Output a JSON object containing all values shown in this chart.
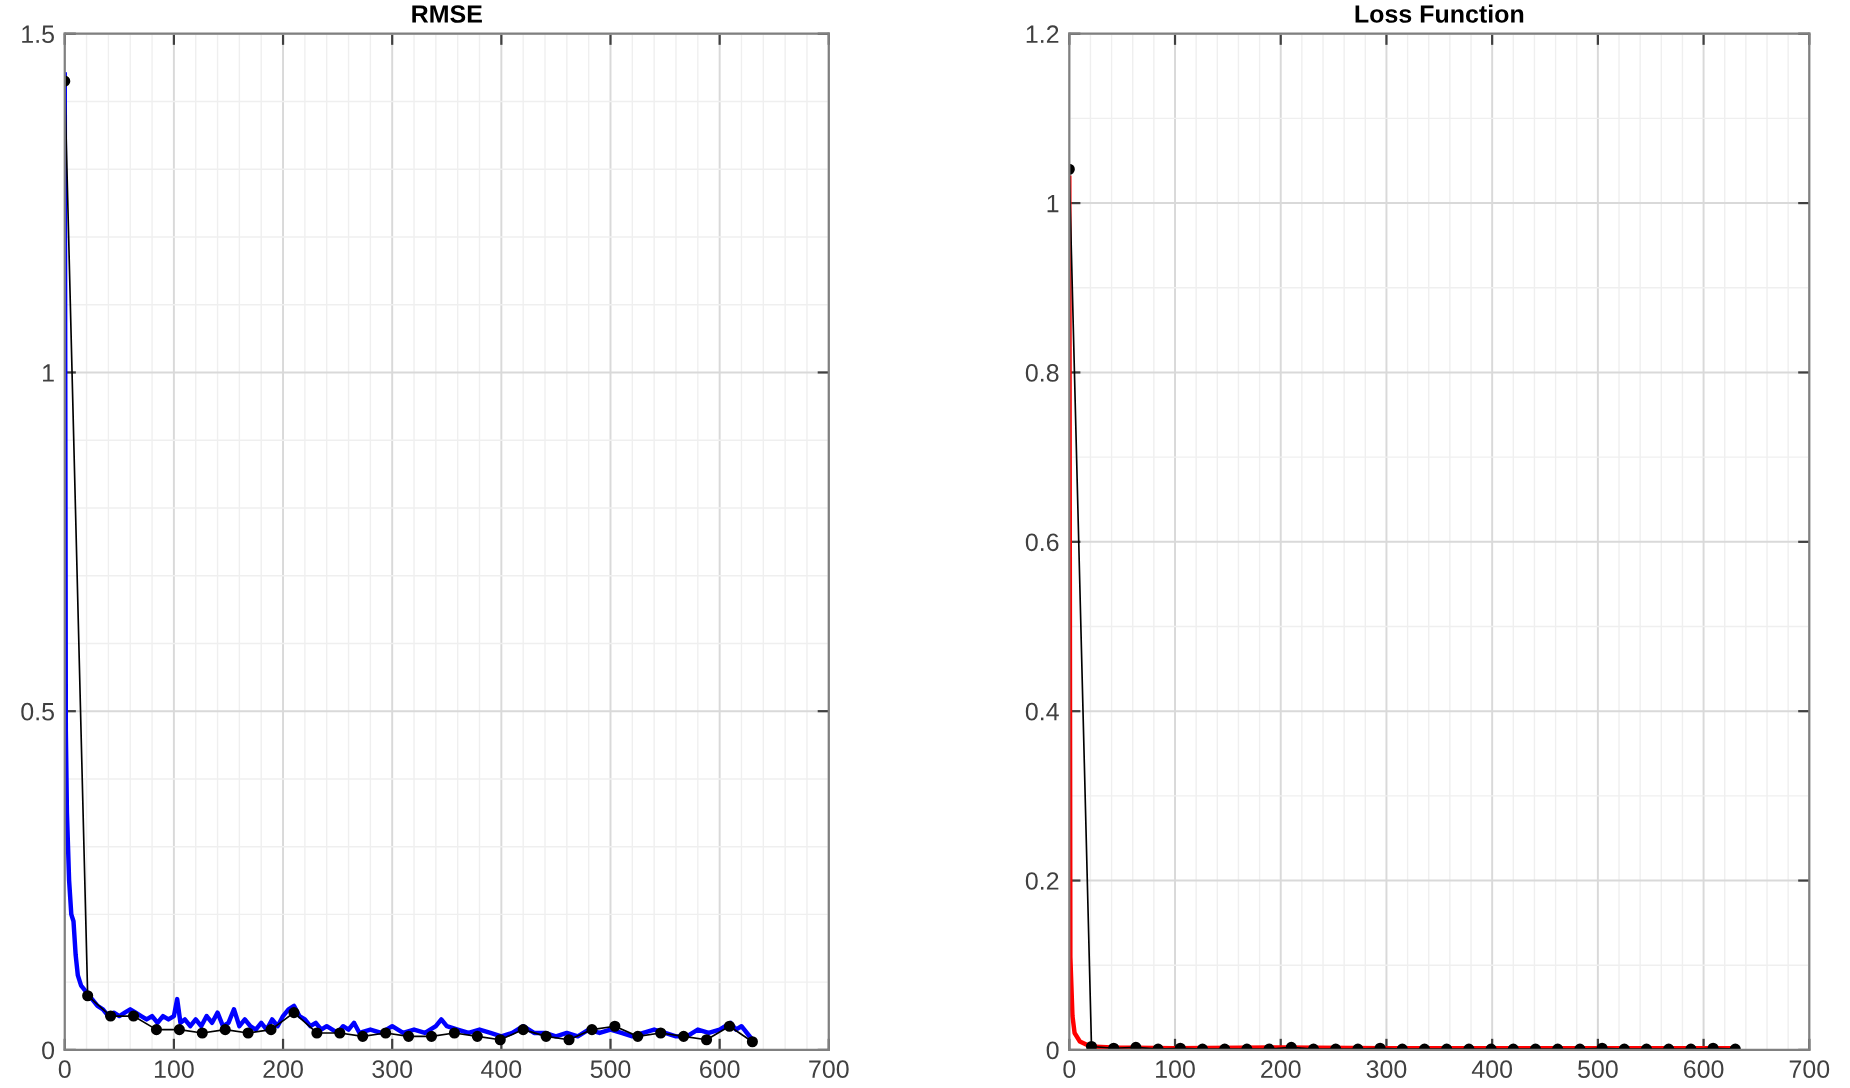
{
  "chart_data": [
    {
      "type": "line",
      "title": "RMSE",
      "xlim": [
        0,
        700
      ],
      "xticks": [
        0,
        100,
        200,
        300,
        400,
        500,
        600,
        700
      ],
      "ylim": [
        0,
        1.5
      ],
      "yticks": [
        0,
        0.5,
        1,
        1.5
      ],
      "grid": true,
      "legend": false,
      "series": [
        {
          "color": "#0000ff",
          "marker": "none",
          "x": [
            0,
            1,
            2,
            4,
            6,
            8,
            10,
            12,
            15,
            20,
            25,
            30,
            35,
            40,
            45,
            50,
            55,
            60,
            65,
            70,
            75,
            80,
            85,
            90,
            95,
            100,
            103,
            106,
            110,
            115,
            120,
            125,
            130,
            135,
            140,
            145,
            150,
            155,
            160,
            165,
            170,
            175,
            180,
            185,
            190,
            195,
            200,
            205,
            210,
            215,
            220,
            225,
            230,
            235,
            240,
            250,
            255,
            260,
            265,
            270,
            280,
            290,
            300,
            310,
            320,
            330,
            340,
            345,
            350,
            360,
            370,
            380,
            390,
            400,
            410,
            420,
            430,
            440,
            450,
            460,
            470,
            480,
            490,
            500,
            510,
            520,
            530,
            540,
            550,
            560,
            570,
            580,
            590,
            600,
            610,
            615,
            620,
            625,
            630
          ],
          "values": [
            1.44,
            0.47,
            0.35,
            0.25,
            0.2,
            0.19,
            0.14,
            0.11,
            0.095,
            0.085,
            0.075,
            0.065,
            0.06,
            0.05,
            0.055,
            0.05,
            0.055,
            0.06,
            0.055,
            0.05,
            0.045,
            0.05,
            0.04,
            0.05,
            0.045,
            0.05,
            0.075,
            0.04,
            0.045,
            0.035,
            0.045,
            0.035,
            0.05,
            0.04,
            0.055,
            0.035,
            0.04,
            0.06,
            0.035,
            0.045,
            0.035,
            0.03,
            0.04,
            0.03,
            0.045,
            0.035,
            0.05,
            0.06,
            0.065,
            0.05,
            0.045,
            0.035,
            0.04,
            0.03,
            0.035,
            0.025,
            0.035,
            0.03,
            0.04,
            0.025,
            0.03,
            0.025,
            0.035,
            0.025,
            0.03,
            0.025,
            0.035,
            0.045,
            0.035,
            0.03,
            0.025,
            0.03,
            0.025,
            0.02,
            0.025,
            0.035,
            0.025,
            0.025,
            0.02,
            0.025,
            0.02,
            0.03,
            0.025,
            0.03,
            0.025,
            0.02,
            0.025,
            0.03,
            0.025,
            0.02,
            0.02,
            0.03,
            0.025,
            0.03,
            0.04,
            0.03,
            0.035,
            0.025,
            0.015
          ]
        },
        {
          "color": "#000000",
          "marker": "circle",
          "x": [
            0,
            21,
            42,
            63,
            84,
            105,
            126,
            147,
            168,
            189,
            210,
            231,
            252,
            273,
            294,
            315,
            336,
            357,
            378,
            399,
            420,
            441,
            462,
            483,
            504,
            525,
            546,
            567,
            588,
            609,
            630
          ],
          "values": [
            1.43,
            0.08,
            0.05,
            0.05,
            0.03,
            0.03,
            0.025,
            0.03,
            0.025,
            0.03,
            0.055,
            0.025,
            0.025,
            0.02,
            0.025,
            0.02,
            0.02,
            0.025,
            0.02,
            0.015,
            0.03,
            0.02,
            0.015,
            0.03,
            0.035,
            0.02,
            0.025,
            0.02,
            0.015,
            0.035,
            0.012
          ]
        }
      ]
    },
    {
      "type": "line",
      "title": "Loss Function",
      "xlim": [
        0,
        700
      ],
      "xticks": [
        0,
        100,
        200,
        300,
        400,
        500,
        600,
        700
      ],
      "ylim": [
        0,
        1.2
      ],
      "yticks": [
        0,
        0.2,
        0.4,
        0.6,
        0.8,
        1,
        1.2
      ],
      "grid": true,
      "legend": false,
      "series": [
        {
          "color": "#ff0000",
          "marker": "none",
          "x": [
            0,
            1,
            3,
            5,
            10,
            20,
            40,
            100,
            200,
            300,
            400,
            500,
            600,
            630
          ],
          "values": [
            1.03,
            0.11,
            0.04,
            0.02,
            0.01,
            0.004,
            0.003,
            0.002,
            0.003,
            0.002,
            0.002,
            0.002,
            0.002,
            0.002
          ]
        },
        {
          "color": "#000000",
          "marker": "circle",
          "x": [
            0,
            21,
            42,
            63,
            84,
            105,
            126,
            147,
            168,
            189,
            210,
            231,
            252,
            273,
            294,
            315,
            336,
            357,
            378,
            399,
            420,
            441,
            462,
            483,
            504,
            525,
            546,
            567,
            588,
            609,
            630
          ],
          "values": [
            1.04,
            0.004,
            0.002,
            0.003,
            0.001,
            0.002,
            0.001,
            0.001,
            0.001,
            0.001,
            0.003,
            0.001,
            0.001,
            0.001,
            0.002,
            0.001,
            0.001,
            0.001,
            0.001,
            0.001,
            0.001,
            0.001,
            0.001,
            0.001,
            0.002,
            0.001,
            0.001,
            0.001,
            0.001,
            0.002,
            0.001
          ]
        }
      ]
    }
  ]
}
